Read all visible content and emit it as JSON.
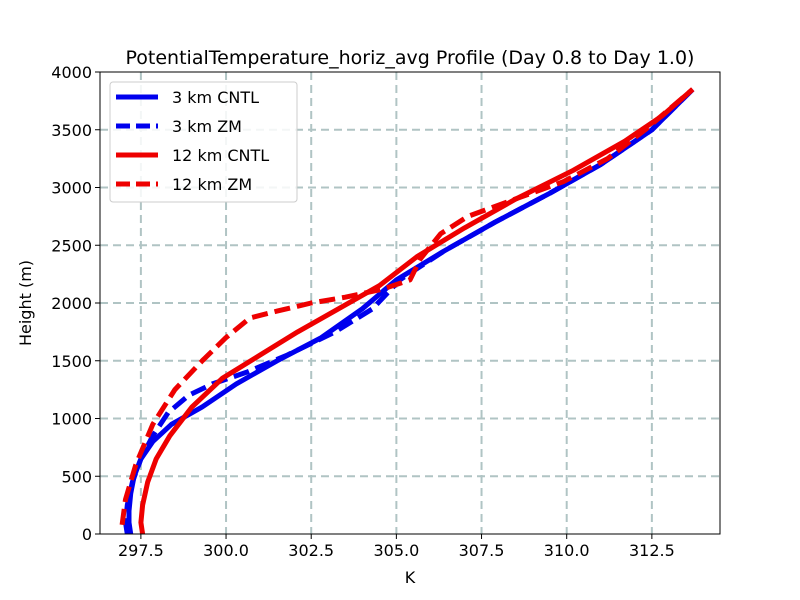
{
  "chart_data": {
    "type": "line",
    "title": "PotentialTemperature_horiz_avg Profile (Day 0.8 to Day 1.0)",
    "xlabel": "K",
    "ylabel": "Height (m)",
    "xlim": [
      296.3,
      314.5
    ],
    "ylim": [
      0,
      4000
    ],
    "xticks": [
      297.5,
      300.0,
      302.5,
      305.0,
      307.5,
      310.0,
      312.5
    ],
    "xtick_labels": [
      "297.5",
      "300.0",
      "302.5",
      "305.0",
      "307.5",
      "310.0",
      "312.5"
    ],
    "yticks": [
      0,
      500,
      1000,
      1500,
      2000,
      2500,
      3000,
      3500,
      4000
    ],
    "ytick_labels": [
      "0",
      "500",
      "1000",
      "1500",
      "2000",
      "2500",
      "3000",
      "3500",
      "4000"
    ],
    "grid": true,
    "legend_position": "top-left",
    "series": [
      {
        "name": "3 km CNTL",
        "color": "#0000ee",
        "style": "solid",
        "points": [
          [
            297.2,
            0
          ],
          [
            297.15,
            100
          ],
          [
            297.15,
            200
          ],
          [
            297.2,
            350
          ],
          [
            297.3,
            500
          ],
          [
            297.5,
            650
          ],
          [
            297.85,
            800
          ],
          [
            298.4,
            950
          ],
          [
            299.3,
            1100
          ],
          [
            300.3,
            1300
          ],
          [
            301.5,
            1500
          ],
          [
            302.8,
            1700
          ],
          [
            304.0,
            1950
          ],
          [
            305.0,
            2200
          ],
          [
            306.4,
            2450
          ],
          [
            307.9,
            2700
          ],
          [
            309.5,
            2950
          ],
          [
            311.0,
            3200
          ],
          [
            312.5,
            3500
          ],
          [
            313.7,
            3850
          ]
        ]
      },
      {
        "name": "3 km ZM",
        "color": "#0000ee",
        "style": "dashed",
        "points": [
          [
            297.1,
            0
          ],
          [
            297.05,
            100
          ],
          [
            297.1,
            250
          ],
          [
            297.25,
            450
          ],
          [
            297.5,
            650
          ],
          [
            297.85,
            850
          ],
          [
            298.3,
            1050
          ],
          [
            298.9,
            1200
          ],
          [
            299.6,
            1300
          ],
          [
            300.6,
            1400
          ],
          [
            301.8,
            1550
          ],
          [
            303.2,
            1750
          ],
          [
            304.3,
            1950
          ],
          [
            305.1,
            2200
          ],
          [
            306.4,
            2450
          ],
          [
            307.9,
            2700
          ],
          [
            309.5,
            2950
          ],
          [
            311.0,
            3200
          ],
          [
            312.5,
            3500
          ],
          [
            313.7,
            3850
          ]
        ]
      },
      {
        "name": "12 km CNTL",
        "color": "#ee0000",
        "style": "solid",
        "points": [
          [
            297.55,
            0
          ],
          [
            297.5,
            100
          ],
          [
            297.55,
            250
          ],
          [
            297.7,
            450
          ],
          [
            297.95,
            650
          ],
          [
            298.35,
            850
          ],
          [
            299.0,
            1100
          ],
          [
            299.9,
            1350
          ],
          [
            301.0,
            1550
          ],
          [
            302.1,
            1750
          ],
          [
            303.3,
            1950
          ],
          [
            304.5,
            2150
          ],
          [
            305.6,
            2400
          ],
          [
            307.0,
            2650
          ],
          [
            308.5,
            2900
          ],
          [
            310.2,
            3150
          ],
          [
            311.7,
            3400
          ],
          [
            312.8,
            3620
          ],
          [
            313.7,
            3850
          ]
        ]
      },
      {
        "name": "12 km ZM",
        "color": "#ee0000",
        "style": "dashed",
        "points": [
          [
            296.95,
            80
          ],
          [
            297.05,
            300
          ],
          [
            297.35,
            600
          ],
          [
            297.85,
            950
          ],
          [
            298.5,
            1250
          ],
          [
            299.3,
            1500
          ],
          [
            300.0,
            1700
          ],
          [
            300.7,
            1870
          ],
          [
            301.5,
            1930
          ],
          [
            302.5,
            2000
          ],
          [
            303.5,
            2050
          ],
          [
            304.6,
            2120
          ],
          [
            305.4,
            2200
          ],
          [
            305.7,
            2380
          ],
          [
            306.3,
            2600
          ],
          [
            307.1,
            2750
          ],
          [
            308.3,
            2880
          ],
          [
            309.9,
            3050
          ],
          [
            311.2,
            3250
          ],
          [
            312.3,
            3500
          ],
          [
            313.7,
            3850
          ]
        ]
      }
    ]
  }
}
